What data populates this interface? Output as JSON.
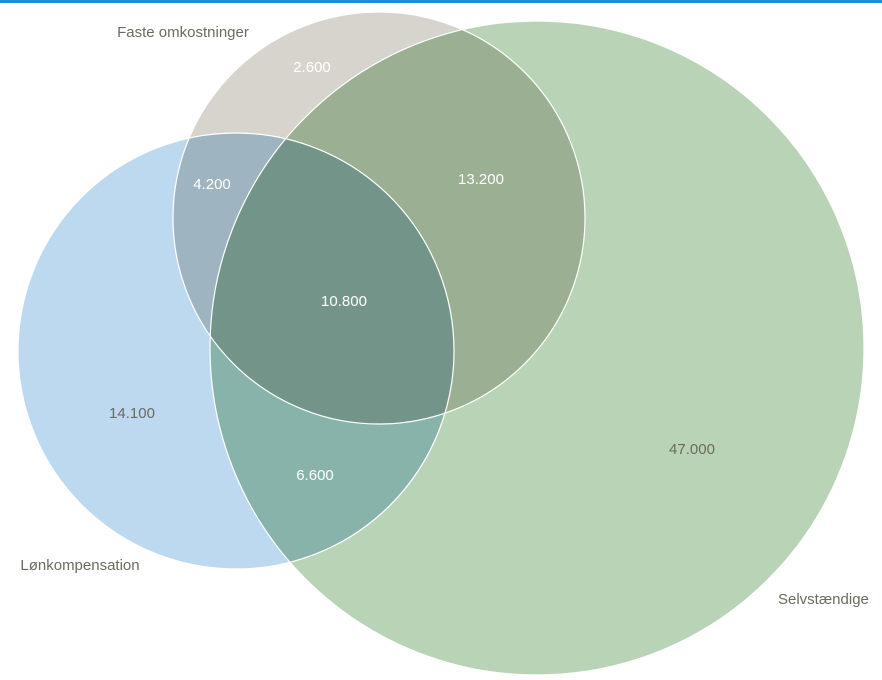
{
  "chart_data": {
    "type": "venn",
    "sets": [
      {
        "name": "Faste omkostninger",
        "color": "#d6d4cc"
      },
      {
        "name": "Lønkompensation",
        "color": "#bcd9f0"
      },
      {
        "name": "Selvstændige",
        "color": "#b9d3b6"
      }
    ],
    "values": [
      2600,
      13200,
      4200,
      10800,
      14100,
      6600,
      47000
    ],
    "value_labels": [
      "2.600",
      "13.200",
      "4.200",
      "10.800",
      "14.100",
      "6.600",
      "47.000"
    ]
  }
}
